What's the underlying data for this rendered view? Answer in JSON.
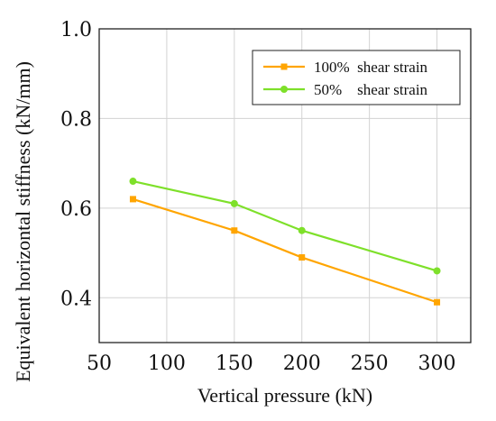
{
  "chart_data": {
    "type": "line",
    "xlabel": "Vertical pressure (kN)",
    "ylabel": "Equivalent horizontal stiffness (kN/mm)",
    "xlim": [
      50,
      325
    ],
    "ylim": [
      0.3,
      1.0
    ],
    "xticks": [
      50,
      100,
      150,
      200,
      250,
      300
    ],
    "xtick_labels": [
      "50",
      "100",
      "150",
      "200",
      "250",
      "300"
    ],
    "yticks": [
      0.4,
      0.6,
      0.8,
      1.0
    ],
    "ytick_labels": [
      "0.4",
      "0.6",
      "0.8",
      "1.0"
    ],
    "grid": true,
    "legend_position": "top-right",
    "series": [
      {
        "name": "100%  shear strain",
        "color": "#ffa500",
        "marker": "square",
        "x": [
          75,
          150,
          200,
          300
        ],
        "y": [
          0.62,
          0.55,
          0.49,
          0.39
        ]
      },
      {
        "name": "50%    shear strain",
        "color": "#7ee02a",
        "marker": "circle",
        "x": [
          75,
          150,
          200,
          300
        ],
        "y": [
          0.66,
          0.61,
          0.55,
          0.46
        ]
      }
    ]
  }
}
